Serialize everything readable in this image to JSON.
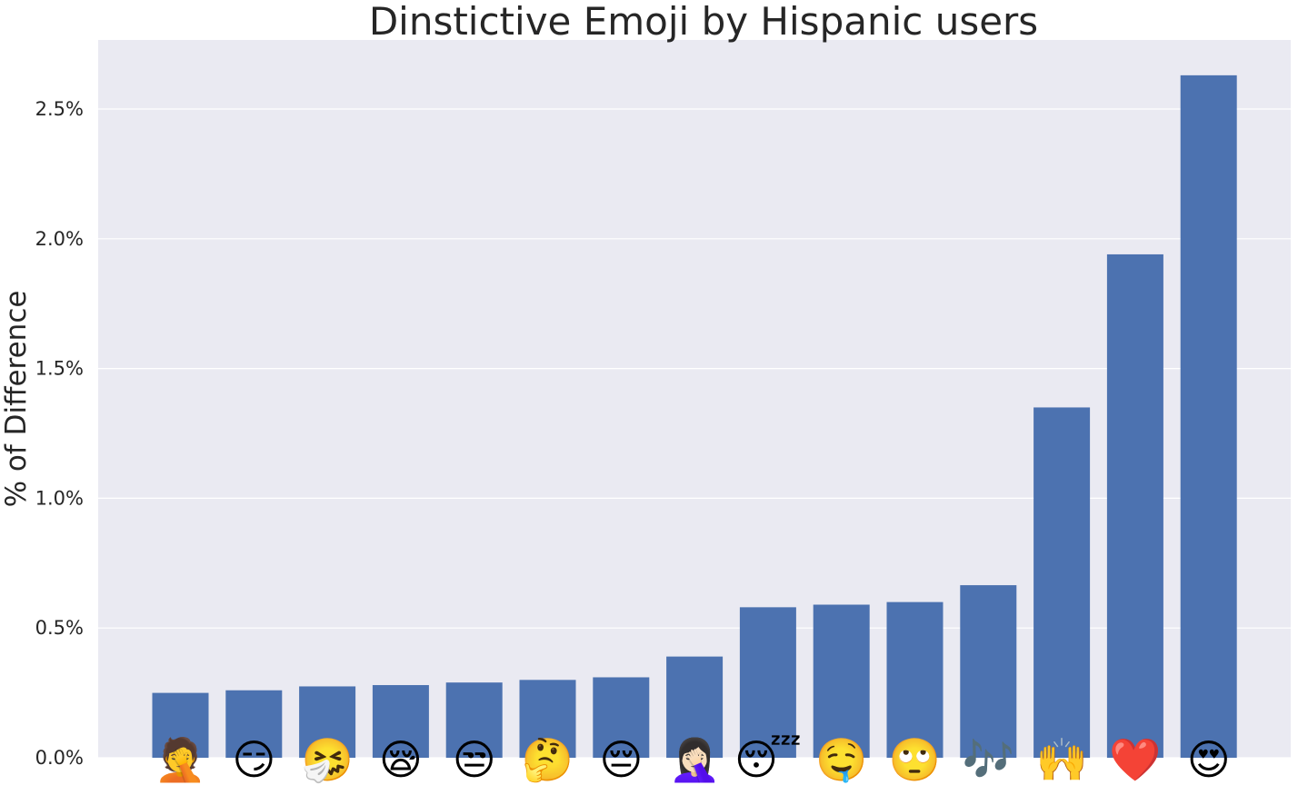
{
  "chart_data": {
    "type": "bar",
    "title": "Dinstictive Emoji by Hispanic users",
    "xlabel": "",
    "ylabel": "% of Difference",
    "ylim": [
      0,
      2.77
    ],
    "yticks": [
      0.0,
      0.5,
      1.0,
      1.5,
      2.0,
      2.5
    ],
    "ytick_labels": [
      "0.0%",
      "0.5%",
      "1.0%",
      "1.5%",
      "2.0%",
      "2.5%"
    ],
    "grid": true,
    "categories": [
      "🤦",
      "😏",
      "🤧",
      "😪",
      "😒",
      "🤔",
      "😔",
      "🤦🏻‍♀️",
      "😴",
      "🤤",
      "🙄",
      "🎶",
      "🙌",
      "❤️",
      "😍"
    ],
    "values": [
      0.25,
      0.26,
      0.275,
      0.28,
      0.29,
      0.3,
      0.31,
      0.39,
      0.58,
      0.59,
      0.6,
      0.665,
      1.35,
      1.94,
      2.63
    ]
  },
  "colors": {
    "background": "#eaeaf2",
    "bar": "#4c72b0",
    "grid": "#ffffff",
    "text": "#262626"
  }
}
